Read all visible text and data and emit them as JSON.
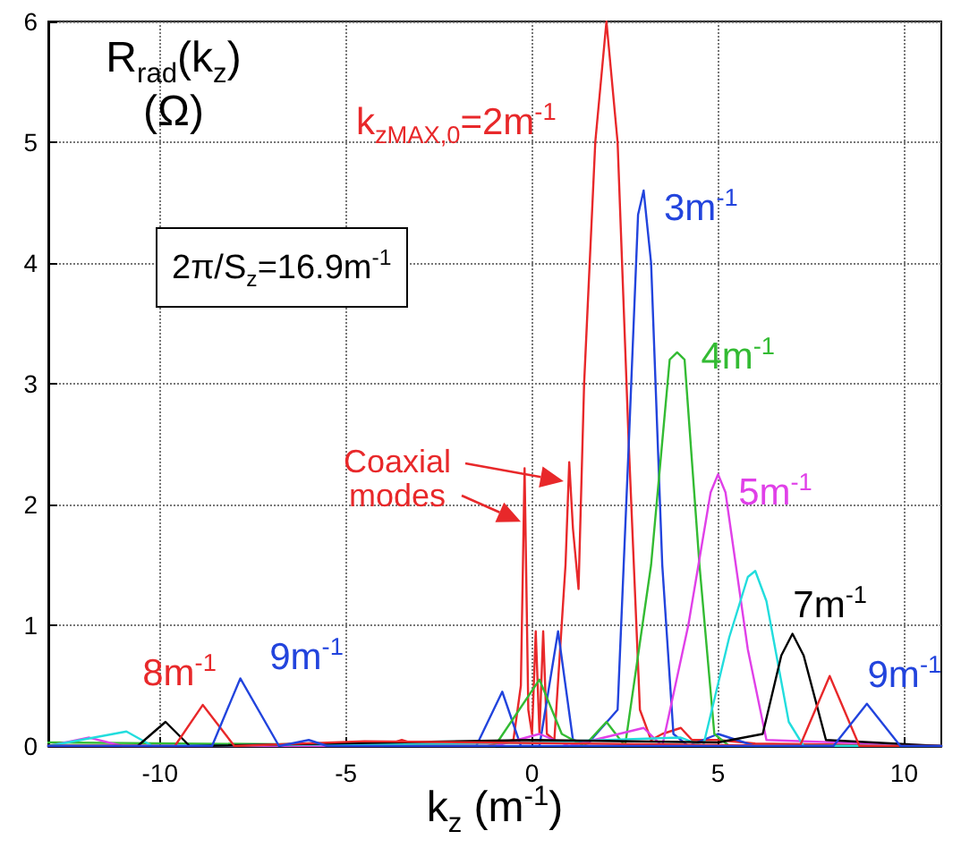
{
  "chart_data": {
    "type": "line",
    "xlabel": "k$_{z}$ (m$^{-1}$)",
    "ylabel": "R$_{rad}$(k$_{z}$) (Ω)",
    "xlim": [
      -13,
      11
    ],
    "xticks": [
      -10,
      -5,
      0,
      5,
      10
    ],
    "ylim": [
      0,
      6
    ],
    "yticks": [
      0,
      1,
      2,
      3,
      4,
      5,
      6
    ],
    "grid": true,
    "marker": "none",
    "line_style": "solid",
    "annotations": [
      "2π/S$_{z}$=16.9m$^{-1}$",
      {
        "text": "k$_{zMAX,0}$=2m$^{-1}$",
        "x": 2.0,
        "y": 6.0
      },
      {
        "text": "3m$^{-1}$",
        "x": 3.0,
        "y": 4.6
      },
      {
        "text": "4m$^{-1}$",
        "x": 3.9,
        "y": 3.26
      },
      {
        "text": "5m$^{-1}$",
        "x": 5,
        "y": 2.25
      },
      {
        "text": "7m$^{-1}$",
        "x": 7,
        "y": 0.93
      },
      {
        "text": "9m$^{-1}$",
        "x": 9,
        "y": 0.35
      },
      {
        "text": "8m$^{-1}$",
        "x": -8.85,
        "y": 0.34
      },
      {
        "text": "9m$^{-1}$",
        "x": -7.84,
        "y": 0.56
      },
      "Coaxial modes"
    ],
    "series": [
      {
        "color": "#e8282a",
        "x": [
          -13,
          -4,
          -3.5,
          -3,
          -1.2,
          -0.5,
          -0.3,
          -0.2,
          -0.1,
          0,
          0.1,
          0.2,
          0.3,
          0.4,
          0.6,
          0.9,
          1.0,
          1.1,
          1.25,
          1.4,
          1.7,
          2.0,
          2.3,
          2.6,
          2.9,
          3.2,
          3.5,
          4.0,
          4.3,
          5,
          6,
          11
        ],
        "values": [
          0,
          0,
          0.05,
          0,
          0,
          0.05,
          0.5,
          2.3,
          0.3,
          0.1,
          0.95,
          0.1,
          0.95,
          0.1,
          0.05,
          1.5,
          2.35,
          1.8,
          1.3,
          3.0,
          5.0,
          6.0,
          5.0,
          2.5,
          0.3,
          0.05,
          0.1,
          0.15,
          0.05,
          0.05,
          0.02,
          0
        ]
      },
      {
        "color": "#2244dd",
        "x": [
          -13,
          -1.5,
          -0.8,
          -0.3,
          0.2,
          0.7,
          1.1,
          1.5,
          2.3,
          2.6,
          2.85,
          3.0,
          3.2,
          3.5,
          3.8,
          4.2,
          5,
          6,
          11
        ],
        "values": [
          0,
          0,
          0.45,
          0,
          0,
          0.95,
          0.05,
          0.02,
          0.3,
          2.5,
          4.4,
          4.6,
          4.0,
          1.5,
          0.1,
          0,
          0.1,
          0,
          0
        ]
      },
      {
        "color": "#33bb33",
        "x": [
          -13,
          -1,
          0.2,
          0.8,
          1.4,
          2,
          2.5,
          3.2,
          3.7,
          3.9,
          4.1,
          4.5,
          4.9,
          5.3,
          11
        ],
        "values": [
          0.03,
          0,
          0.55,
          0.1,
          0,
          0.2,
          0,
          1.5,
          3.2,
          3.26,
          3.2,
          1.5,
          0.1,
          0,
          0
        ]
      },
      {
        "color": "#e040e8",
        "x": [
          -13,
          -11.9,
          -11,
          -1,
          0.2,
          1,
          3,
          3.5,
          4.2,
          4.8,
          5,
          5.2,
          5.8,
          6.3,
          11
        ],
        "values": [
          0,
          0.07,
          0,
          0,
          0.1,
          0,
          0.15,
          0,
          1.0,
          2.1,
          2.25,
          2.1,
          0.8,
          0.05,
          0
        ]
      },
      {
        "color": "#22dddd",
        "x": [
          -13,
          -10.9,
          -10.2,
          0,
          4,
          4.6,
          5.3,
          5.8,
          6,
          6.3,
          6.9,
          7.3,
          11
        ],
        "values": [
          0,
          0.12,
          0,
          0.03,
          0.07,
          0,
          0.9,
          1.4,
          1.45,
          1.2,
          0.2,
          0,
          0
        ]
      },
      {
        "color": "#000000",
        "x": [
          -13,
          -10.6,
          -9.85,
          -9.2,
          0,
          5,
          6.2,
          6.7,
          7,
          7.3,
          7.9,
          11
        ],
        "values": [
          0,
          0,
          0.2,
          0,
          0.05,
          0.03,
          0.1,
          0.75,
          0.93,
          0.75,
          0.05,
          0
        ]
      },
      {
        "color": "#e8282a",
        "x": [
          -13,
          -9.6,
          -8.85,
          -8,
          -4.5,
          7.2,
          8,
          8.8,
          11
        ],
        "values": [
          0,
          0,
          0.34,
          0,
          0.04,
          0,
          0.58,
          0,
          0
        ]
      },
      {
        "color": "#2244dd",
        "x": [
          -13,
          -8.6,
          -7.84,
          -6.8,
          -6,
          -5.5,
          8.1,
          9,
          9.9,
          11
        ],
        "values": [
          0,
          0,
          0.56,
          0,
          0.05,
          0,
          0,
          0.35,
          0,
          0
        ]
      }
    ]
  }
}
